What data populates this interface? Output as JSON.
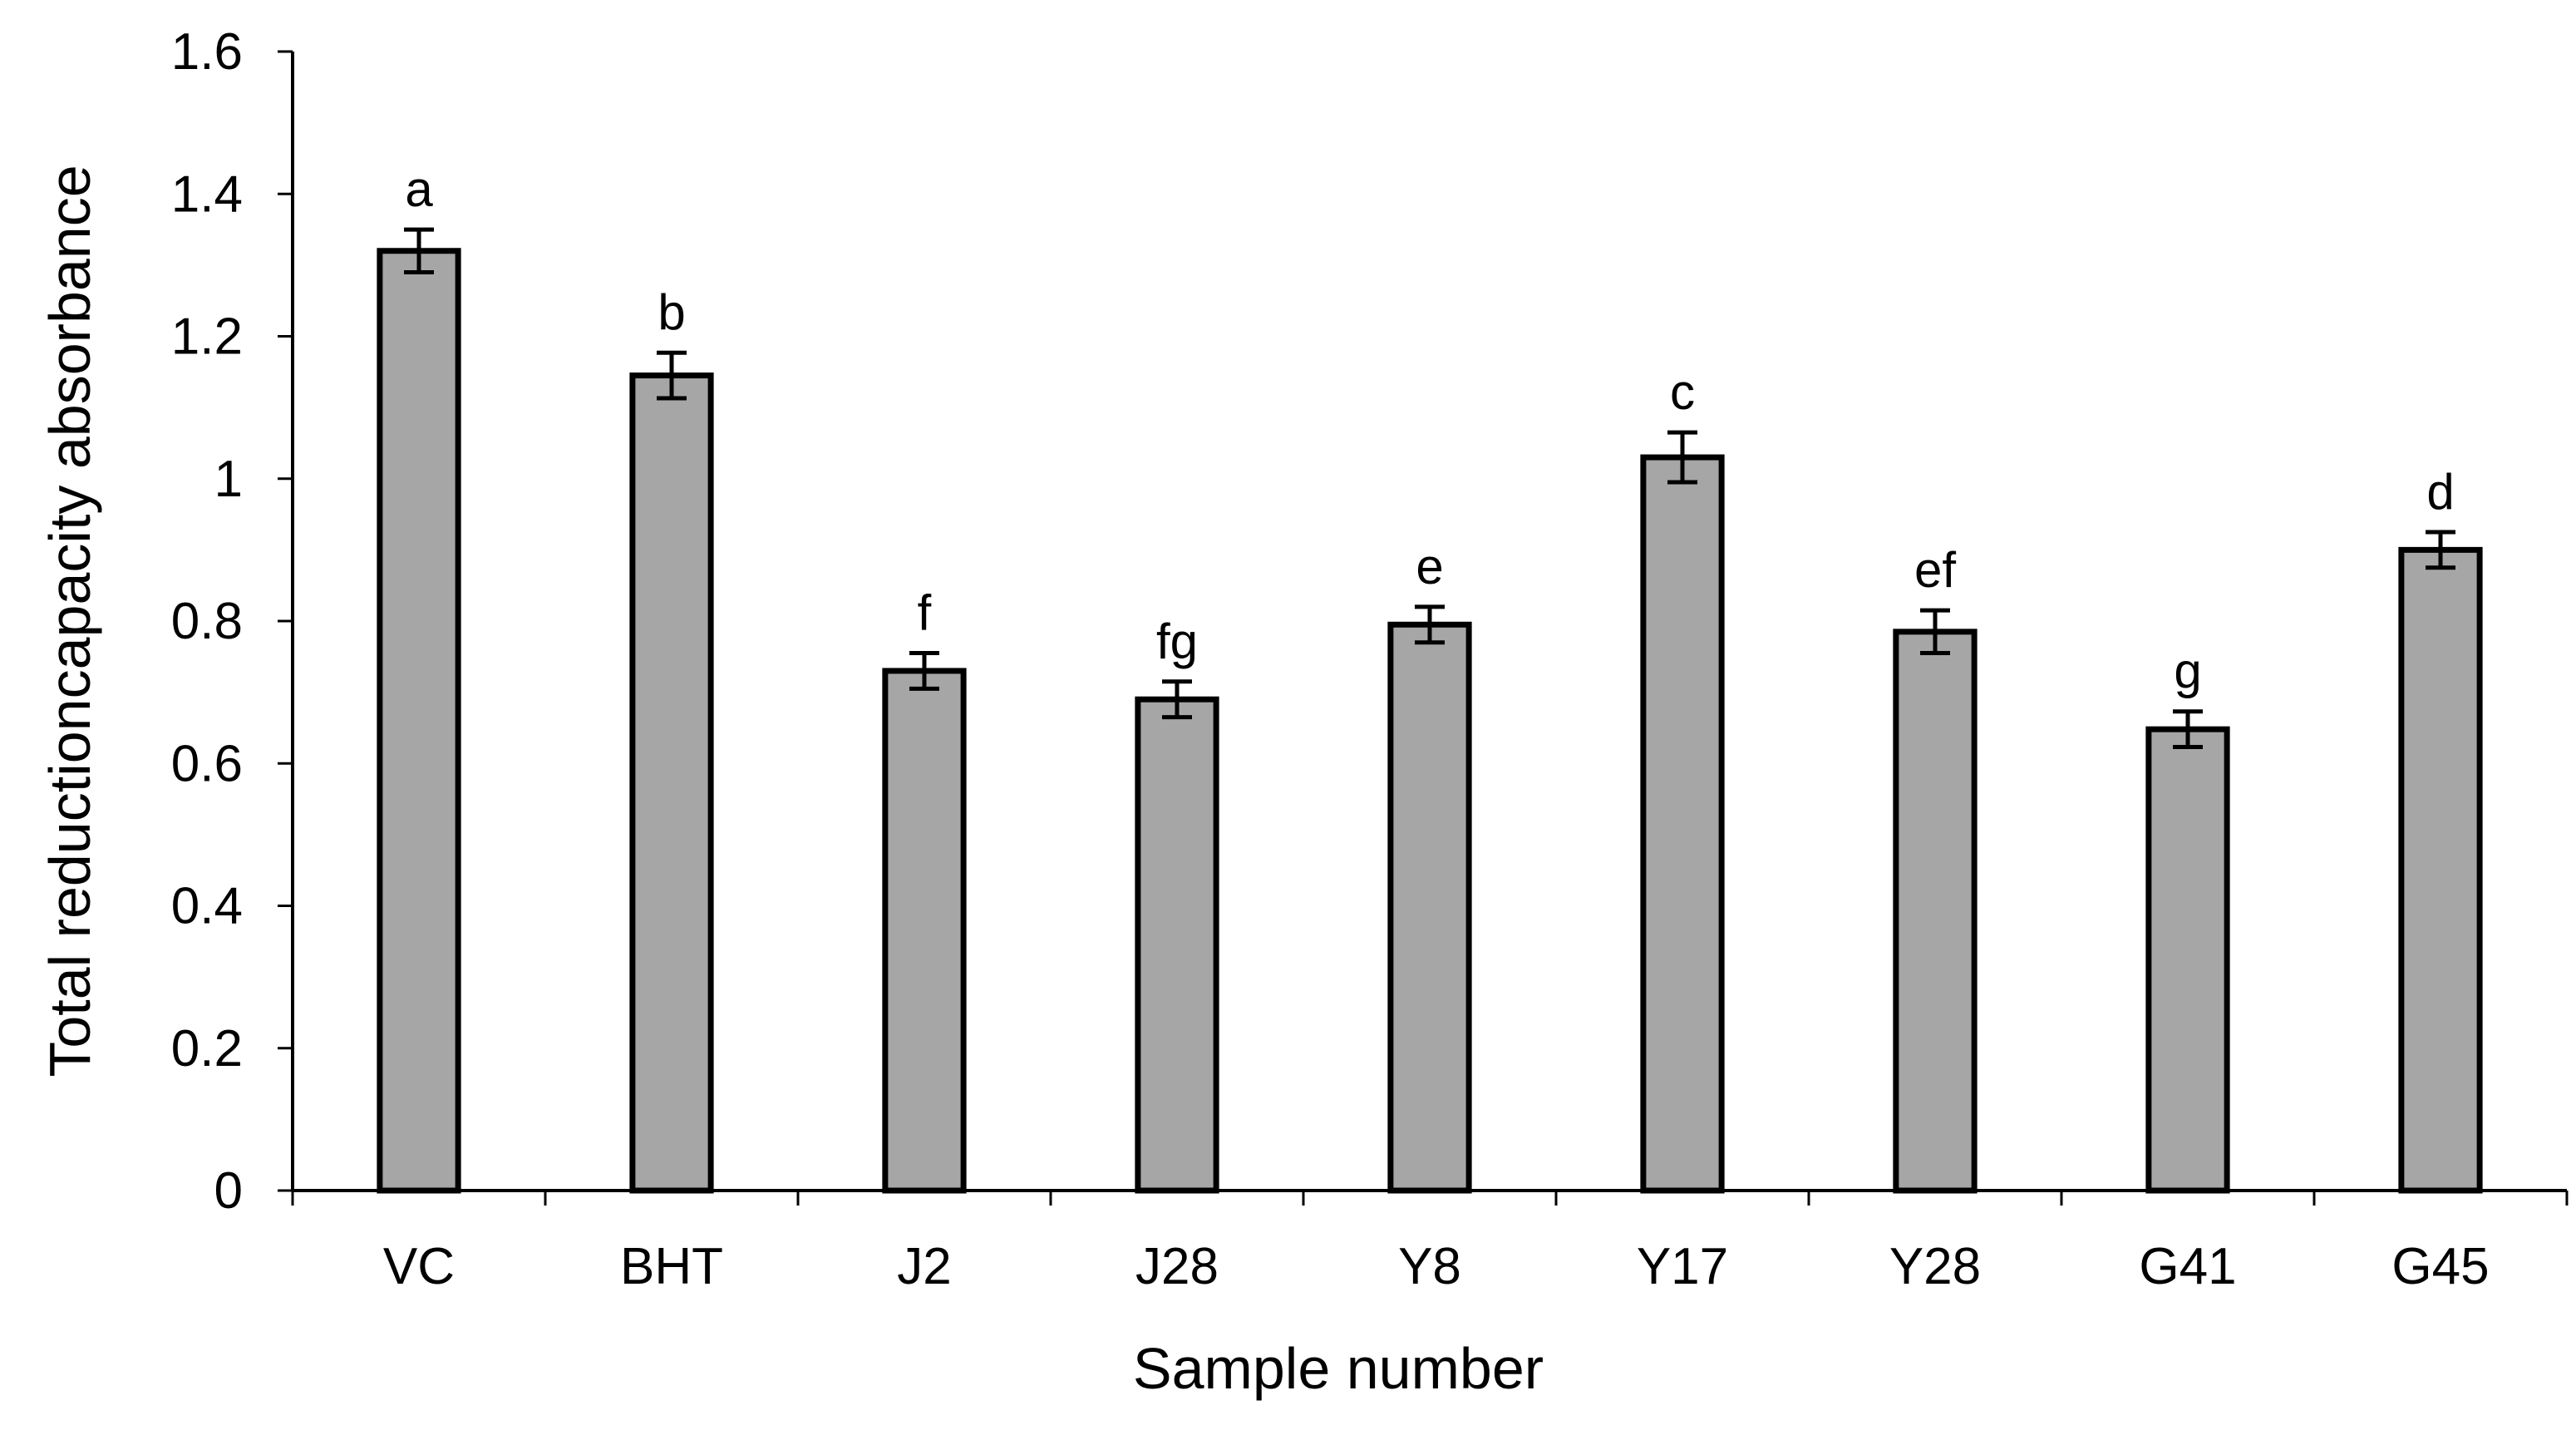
{
  "chart_data": {
    "type": "bar",
    "title": "",
    "xlabel": "Sample number",
    "ylabel": "Total reductioncapacity absorbance",
    "ylim": [
      0,
      1.6
    ],
    "yticks": [
      "0",
      "0.2",
      "0.4",
      "0.6",
      "0.8",
      "1",
      "1.2",
      "1.4",
      "1.6"
    ],
    "grid": false,
    "bar_color": "#a6a6a6",
    "categories": [
      "VC",
      "BHT",
      "J2",
      "J28",
      "Y8",
      "Y17",
      "Y28",
      "G41",
      "G45"
    ],
    "values": [
      1.32,
      1.145,
      0.73,
      0.69,
      0.795,
      1.03,
      0.785,
      0.648,
      0.9
    ],
    "errors": [
      0.03,
      0.032,
      0.025,
      0.025,
      0.025,
      0.035,
      0.03,
      0.025,
      0.025
    ],
    "significance_labels": [
      "a",
      "b",
      "f",
      "fg",
      "e",
      "c",
      "ef",
      "g",
      "d"
    ]
  }
}
